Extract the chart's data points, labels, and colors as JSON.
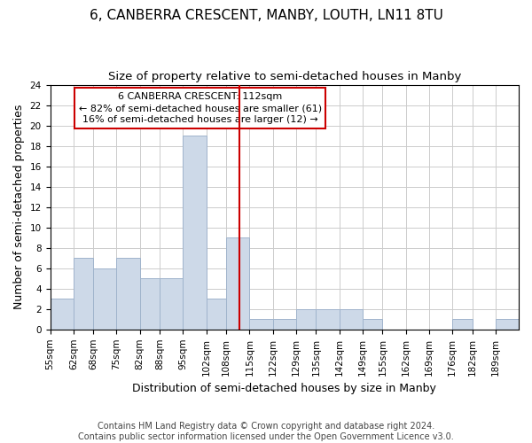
{
  "title": "6, CANBERRA CRESCENT, MANBY, LOUTH, LN11 8TU",
  "subtitle": "Size of property relative to semi-detached houses in Manby",
  "xlabel": "Distribution of semi-detached houses by size in Manby",
  "ylabel": "Number of semi-detached properties",
  "bin_edges": [
    55,
    62,
    68,
    75,
    82,
    88,
    95,
    102,
    108,
    115,
    122,
    129,
    135,
    142,
    149,
    155,
    162,
    169,
    176,
    182,
    189,
    196
  ],
  "bin_labels": [
    "55sqm",
    "62sqm",
    "68sqm",
    "75sqm",
    "82sqm",
    "88sqm",
    "95sqm",
    "102sqm",
    "108sqm",
    "115sqm",
    "122sqm",
    "129sqm",
    "135sqm",
    "142sqm",
    "149sqm",
    "155sqm",
    "162sqm",
    "169sqm",
    "176sqm",
    "182sqm",
    "189sqm"
  ],
  "counts": [
    3,
    7,
    6,
    7,
    5,
    5,
    19,
    3,
    9,
    1,
    1,
    2,
    2,
    2,
    1,
    0,
    0,
    0,
    1,
    0,
    1
  ],
  "bar_facecolor": "#cdd9e8",
  "bar_edgecolor": "#a0b4cc",
  "property_line_x": 112,
  "property_line_color": "#cc0000",
  "annotation_line1": "6 CANBERRA CRESCENT: 112sqm",
  "annotation_line2": "← 82% of semi-detached houses are smaller (61)",
  "annotation_line3": "16% of semi-detached houses are larger (12) →",
  "annotation_box_facecolor": "white",
  "annotation_box_edgecolor": "#cc0000",
  "ylim": [
    0,
    24
  ],
  "yticks": [
    0,
    2,
    4,
    6,
    8,
    10,
    12,
    14,
    16,
    18,
    20,
    22,
    24
  ],
  "footer_text": "Contains HM Land Registry data © Crown copyright and database right 2024.\nContains public sector information licensed under the Open Government Licence v3.0.",
  "background_color": "#ffffff",
  "grid_color": "#cccccc",
  "title_fontsize": 11,
  "subtitle_fontsize": 9.5,
  "label_fontsize": 9,
  "tick_fontsize": 7.5,
  "annotation_fontsize": 8,
  "footer_fontsize": 7
}
